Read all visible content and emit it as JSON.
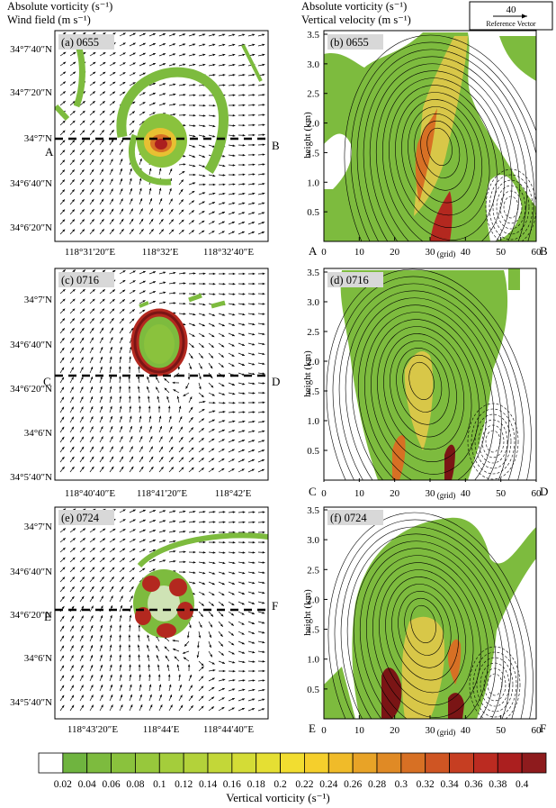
{
  "header_left": {
    "line1": "Absolute vorticity (s⁻¹)",
    "line2": "Wind field (m s⁻¹)"
  },
  "header_right": {
    "line1": "Absolute vorticity (s⁻¹)",
    "line2": "Vertical velocity (m s⁻¹)"
  },
  "reference_vector": {
    "value": "40",
    "label": "Reference Vector"
  },
  "panels": [
    {
      "id": "a",
      "tag": "(a) 0655",
      "type": "plan",
      "yticks": [
        "34°7′40″N",
        "34°7′20″N",
        "34°7′N",
        "34°6′40″N",
        "34°6′20″N"
      ],
      "xticks": [
        "118°31′20″E",
        "118°32′E",
        "118°32′40″E"
      ],
      "left_end": "A",
      "right_end": "B"
    },
    {
      "id": "b",
      "tag": "(b) 0655",
      "type": "section",
      "ylabel": "height (km)",
      "yticks": [
        "3.5",
        "3.0",
        "2.5",
        "2.0",
        "1.5",
        "1.0",
        "0.5"
      ],
      "xticks": [
        "0",
        "10",
        "20",
        "30",
        "40",
        "50",
        "60"
      ],
      "xunit": "(grid)",
      "left_end": "A",
      "right_end": "B"
    },
    {
      "id": "c",
      "tag": "(c) 0716",
      "type": "plan",
      "yticks": [
        "34°7′N",
        "34°6′40″N",
        "34°6′20″N",
        "34°6′N",
        "34°5′40″N"
      ],
      "xticks": [
        "118°40′40″E",
        "118°41′20″E",
        "118°42′E"
      ],
      "left_end": "C",
      "right_end": "D"
    },
    {
      "id": "d",
      "tag": "(d) 0716",
      "type": "section",
      "ylabel": "height (km)",
      "yticks": [
        "3.5",
        "3.0",
        "2.5",
        "2.0",
        "1.5",
        "1.0",
        "0.5"
      ],
      "xticks": [
        "0",
        "10",
        "20",
        "30",
        "40",
        "50",
        "60"
      ],
      "xunit": "(grid)",
      "left_end": "C",
      "right_end": "D"
    },
    {
      "id": "e",
      "tag": "(e) 0724",
      "type": "plan",
      "yticks": [
        "34°7′N",
        "34°6′40″N",
        "34°6′20″N",
        "34°6′N",
        "34°5′40″N"
      ],
      "xticks": [
        "118°43′20″E",
        "118°44′E",
        "118°44′40″E"
      ],
      "left_end": "E",
      "right_end": "F"
    },
    {
      "id": "f",
      "tag": "(f) 0724",
      "type": "section",
      "ylabel": "height (km)",
      "yticks": [
        "3.5",
        "3.0",
        "2.5",
        "2.0",
        "1.5",
        "1.0",
        "0.5"
      ],
      "xticks": [
        "0",
        "10",
        "20",
        "30",
        "40",
        "50",
        "60"
      ],
      "xunit": "(grid)",
      "left_end": "E",
      "right_end": "F"
    }
  ],
  "colorbar": {
    "labels": [
      "0.02",
      "0.04",
      "0.06",
      "0.08",
      "0.1",
      "0.12",
      "0.14",
      "0.16",
      "0.18",
      "0.2",
      "0.22",
      "0.24",
      "0.26",
      "0.28",
      "0.3",
      "0.32",
      "0.34",
      "0.36",
      "0.38",
      "0.4"
    ],
    "colors": [
      "#ffffff",
      "#6fb43f",
      "#7dbb3e",
      "#8ac23d",
      "#97c83c",
      "#a4cd3b",
      "#b3d23a",
      "#c3d738",
      "#d4dc36",
      "#e5df33",
      "#f2dd30",
      "#f5cf2c",
      "#f0bb29",
      "#e8a327",
      "#e08a25",
      "#d77024",
      "#cf5523",
      "#c63e22",
      "#bb2b21",
      "#ab1f1f",
      "#8e1b1d"
    ],
    "title": "Vertical vorticity (s⁻¹)"
  },
  "colors": {
    "green": "#7dbb3e",
    "yellow": "#e8d83a",
    "orange": "#e08a25",
    "red": "#c0281f",
    "dark_red": "#7a1515"
  }
}
